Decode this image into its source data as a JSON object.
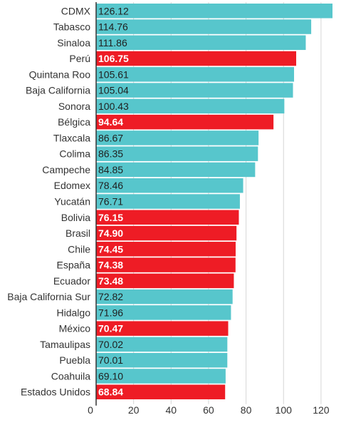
{
  "chart_data": {
    "type": "bar",
    "orientation": "horizontal",
    "categories": [
      "CDMX",
      "Tabasco",
      "Sinaloa",
      "Perú",
      "Quintana Roo",
      "Baja California",
      "Sonora",
      "Bélgica",
      "Tlaxcala",
      "Colima",
      "Campeche",
      "Edomex",
      "Yucatán",
      "Bolivia",
      "Brasil",
      "Chile",
      "España",
      "Ecuador",
      "Baja California Sur",
      "Hidalgo",
      "México",
      "Tamaulipas",
      "Puebla",
      "Coahuila",
      "Estados Unidos"
    ],
    "values": [
      126.12,
      114.76,
      111.86,
      106.75,
      105.61,
      105.04,
      100.43,
      94.64,
      86.67,
      86.35,
      84.85,
      78.46,
      76.71,
      76.15,
      74.9,
      74.45,
      74.38,
      73.48,
      72.82,
      71.96,
      70.47,
      70.02,
      70.01,
      69.1,
      68.84
    ],
    "value_labels": [
      "126.12",
      "114.76",
      "111.86",
      "106.75",
      "105.61",
      "105.04",
      "100.43",
      "94.64",
      "86.67",
      "86.35",
      "84.85",
      "78.46",
      "76.71",
      "76.15",
      "74.90",
      "74.45",
      "74.38",
      "73.48",
      "72.82",
      "71.96",
      "70.47",
      "70.02",
      "70.01",
      "69.10",
      "68.84"
    ],
    "highlighted": [
      false,
      false,
      false,
      true,
      false,
      false,
      false,
      true,
      false,
      false,
      false,
      false,
      false,
      true,
      true,
      true,
      true,
      true,
      false,
      false,
      true,
      false,
      false,
      false,
      true
    ],
    "xlim": [
      0,
      126.12
    ],
    "xticks": [
      0,
      20,
      40,
      60,
      80,
      100,
      120
    ],
    "xtick_labels": [
      "0",
      "20",
      "40",
      "60",
      "80",
      "100",
      "120"
    ],
    "gridlines": true,
    "title": "",
    "xlabel": "",
    "ylabel": "",
    "colors": {
      "base_bar": "#57c6cc",
      "highlight_bar": "#ee1c25",
      "base_value_text": "#1f1f1f",
      "highlight_value_text": "#ffffff",
      "grid": "#d6d6d6",
      "axis": "#333333"
    }
  }
}
